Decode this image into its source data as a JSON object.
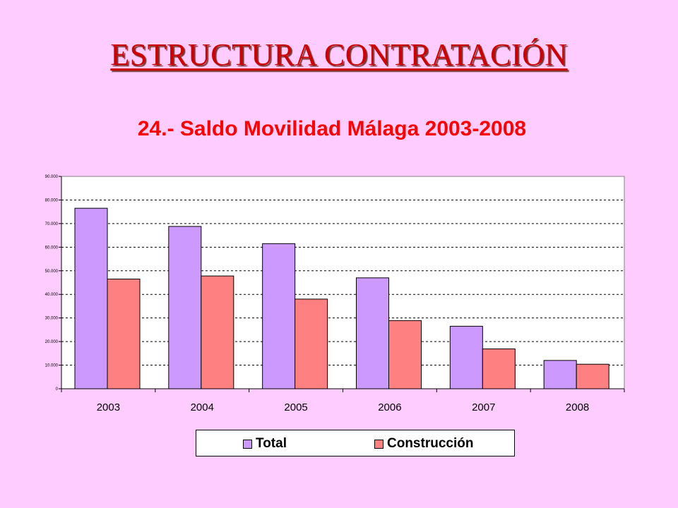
{
  "slide": {
    "title": "ESTRUCTURA CONTRATACIÓN"
  },
  "colors": {
    "background": "#ffccff",
    "total": "#cc99ff",
    "construccion": "#ff8080",
    "slide_title": "#cc0000",
    "chart_title": "#ff0000"
  },
  "chart_data": {
    "type": "bar",
    "title": "24.- Saldo Movilidad Málaga 2003-2008",
    "categories": [
      "2003",
      "2004",
      "2005",
      "2006",
      "2007",
      "2008"
    ],
    "series": [
      {
        "name": "Total",
        "values": [
          76500,
          68800,
          61500,
          47000,
          26500,
          12000
        ]
      },
      {
        "name": "Construcción",
        "values": [
          46500,
          47800,
          38000,
          28900,
          16900,
          10400
        ]
      }
    ],
    "ylim": [
      0,
      90000
    ],
    "yticks": [
      0,
      10000,
      20000,
      30000,
      40000,
      50000,
      60000,
      70000,
      80000,
      90000
    ],
    "ytick_labels": [
      "0",
      "10.000",
      "20.000",
      "30.000",
      "40.000",
      "50.000",
      "60.000",
      "70.000",
      "80.000",
      "90.000"
    ],
    "grid": true,
    "legend_position": "bottom"
  }
}
